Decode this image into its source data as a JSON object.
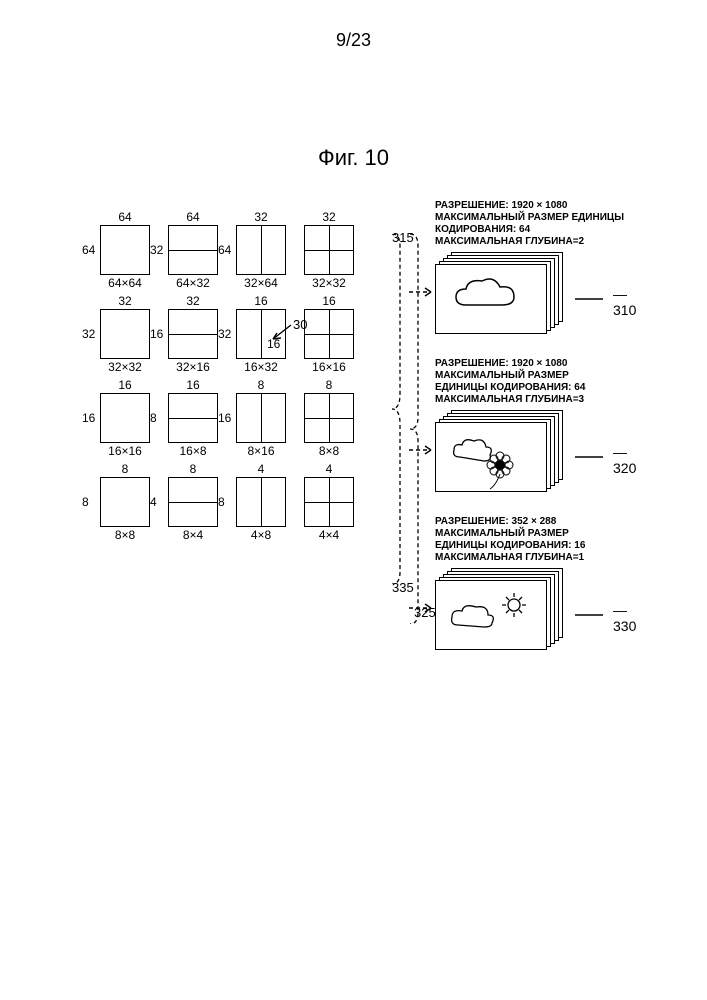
{
  "pageNumber": "9/23",
  "figTitle": "Фиг. 10",
  "rows": [
    {
      "sizes": [
        "64",
        "64",
        "32",
        "32"
      ],
      "sides": [
        "64",
        "32",
        "64",
        ""
      ],
      "bots": [
        "64×64",
        "64×32",
        "32×64",
        "32×32"
      ]
    },
    {
      "sizes": [
        "32",
        "32",
        "16",
        "16"
      ],
      "sides": [
        "32",
        "16",
        "32",
        ""
      ],
      "bots": [
        "32×32",
        "32×16",
        "16×32",
        "16×16"
      ]
    },
    {
      "sizes": [
        "16",
        "16",
        "8",
        "8"
      ],
      "sides": [
        "16",
        "8",
        "16",
        ""
      ],
      "bots": [
        "16×16",
        "16×8",
        "8×16",
        "8×8"
      ]
    },
    {
      "sizes": [
        "8",
        "8",
        "4",
        "4"
      ],
      "sides": [
        "8",
        "4",
        "8",
        ""
      ],
      "bots": [
        "8×8",
        "8×4",
        "4×8",
        "4×4"
      ]
    }
  ],
  "callouts": {
    "c315": "315",
    "c335": "335",
    "c325": "325",
    "c30": "30",
    "c16": "16"
  },
  "entries": [
    {
      "l1": "РАЗРЕШЕНИЕ: 1920 × 1080",
      "l2": "МАКСИМАЛЬНЫЙ РАЗМЕР ЕДИНИЦЫ",
      "l3": "КОДИРОВАНИЯ: 64",
      "l4": "МАКСИМАЛЬНАЯ ГЛУБИНА=2",
      "ref": "310",
      "icon": "cloud"
    },
    {
      "l1": "РАЗРЕШЕНИЕ: 1920 × 1080",
      "l2": "МАКСИМАЛЬНЫЙ РАЗМЕР",
      "l3": "ЕДИНИЦЫ КОДИРОВАНИЯ: 64",
      "l4": "МАКСИМАЛЬНАЯ ГЛУБИНА=3",
      "ref": "320",
      "icon": "flower"
    },
    {
      "l1": "РАЗРЕШЕНИЕ: 352 × 288",
      "l2": "МАКСИМАЛЬНЫЙ РАЗМЕР",
      "l3": "ЕДИНИЦЫ КОДИРОВАНИЯ: 16",
      "l4": "МАКСИМАЛЬНАЯ ГЛУБИНА=1",
      "ref": "330",
      "icon": "sun"
    }
  ]
}
